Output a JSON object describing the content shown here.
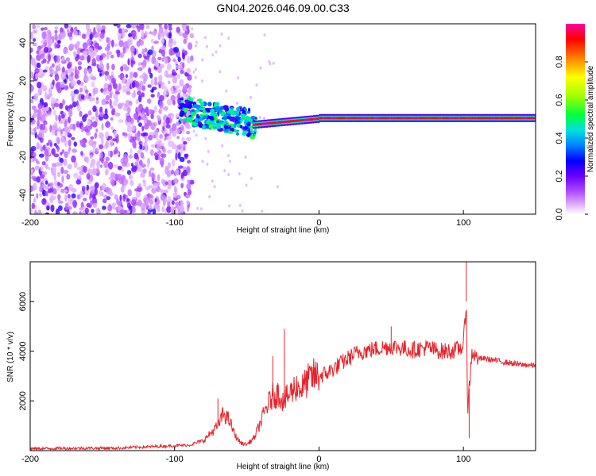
{
  "title": "GN04.2026.046.09.00.C33",
  "chart_data": [
    {
      "type": "heatmap",
      "xlabel": "Height of straight line (km)",
      "ylabel": "Frequency (Hz)",
      "xlim": [
        -200,
        150
      ],
      "ylim": [
        -50,
        50
      ],
      "xticks": [
        -200,
        -100,
        0,
        100
      ],
      "xtick_labels": [
        "-200",
        "-100",
        "0",
        "100"
      ],
      "yticks": [
        40,
        20,
        0,
        -20,
        -40
      ],
      "ytick_labels": [
        "40",
        "20",
        "0",
        "-20",
        "-40"
      ],
      "colorbar": {
        "label": "Normalized spectral amplitude",
        "range": [
          0,
          1
        ],
        "ticks": [
          0.0,
          0.2,
          0.4,
          0.6,
          0.8
        ],
        "tick_labels": [
          "0.0",
          "0.2",
          "0.4",
          "0.6",
          "0.8"
        ]
      },
      "regions": [
        {
          "x_range": [
            -200,
            -90
          ],
          "freq_range": [
            -50,
            50
          ],
          "amplitude": "0.05-0.25",
          "pattern": "noise"
        },
        {
          "x_range": [
            -95,
            -45
          ],
          "freq_range": [
            -12,
            12
          ],
          "amplitude": "0.2-0.5",
          "pattern": "scattered band"
        },
        {
          "x_range": [
            -45,
            150
          ],
          "freq_center": 0,
          "amplitude": "0.8-1.0",
          "pattern": "narrow line"
        }
      ]
    },
    {
      "type": "line",
      "xlabel": "Height of straight line (km)",
      "ylabel": "SNR (10 * v/v)",
      "xlim": [
        -200,
        150
      ],
      "ylim": [
        0,
        7600
      ],
      "xticks": [
        -200,
        -100,
        0,
        100
      ],
      "xtick_labels": [
        "-200",
        "-100",
        "0",
        "100"
      ],
      "yticks": [
        2000,
        4000,
        6000
      ],
      "ytick_labels": [
        "2000",
        "4000",
        "6000"
      ],
      "color": "#e8232a",
      "series": [
        {
          "name": "SNR",
          "x": [
            -200,
            -180,
            -160,
            -140,
            -120,
            -100,
            -90,
            -80,
            -70,
            -66,
            -62,
            -58,
            -54,
            -50,
            -45,
            -40,
            -36,
            -32,
            -28,
            -24,
            -20,
            -16,
            -12,
            -8,
            -4,
            0,
            5,
            10,
            15,
            20,
            25,
            30,
            35,
            40,
            45,
            50,
            55,
            60,
            65,
            70,
            75,
            80,
            85,
            90,
            95,
            100,
            102,
            103,
            104,
            106,
            108,
            110,
            115,
            120,
            125,
            130,
            135,
            140,
            145,
            150
          ],
          "y": [
            80,
            90,
            100,
            100,
            150,
            200,
            220,
            400,
            1000,
            1500,
            1200,
            600,
            300,
            250,
            500,
            1200,
            1800,
            2200,
            2300,
            2000,
            2300,
            2600,
            2500,
            2800,
            3000,
            3000,
            3100,
            3300,
            3500,
            3700,
            3900,
            4000,
            4050,
            4100,
            4150,
            4200,
            4150,
            4100,
            4050,
            4100,
            4150,
            4050,
            4000,
            4000,
            4050,
            4200,
            6000,
            1500,
            2500,
            4000,
            3800,
            3700,
            3700,
            3650,
            3600,
            3550,
            3500,
            3450,
            3450,
            3400
          ]
        }
      ],
      "spikes": [
        {
          "x": -70,
          "y": 2100
        },
        {
          "x": -32,
          "y": 3800
        },
        {
          "x": -24,
          "y": 4900
        },
        {
          "x": 50,
          "y": 5000
        },
        {
          "x": 102,
          "y": 7600
        },
        {
          "x": 104,
          "y": 500
        }
      ]
    }
  ]
}
